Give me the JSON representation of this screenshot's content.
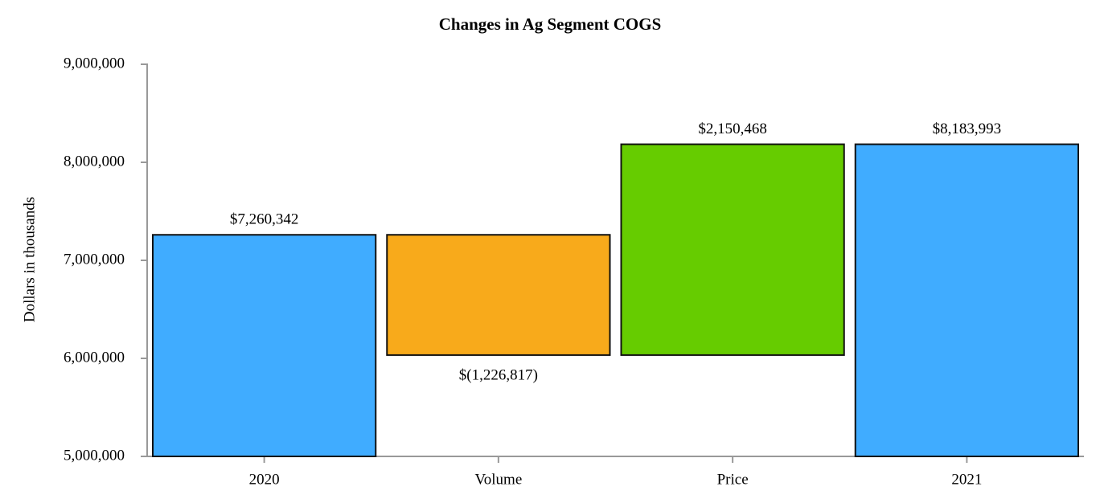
{
  "chart_data": {
    "type": "waterfall",
    "title": "Changes in Ag Segment COGS",
    "y_label": "Dollars in thousands",
    "categories": [
      "2020",
      "Volume",
      "Price",
      "2021"
    ],
    "measure": [
      "absolute",
      "relative",
      "relative",
      "absolute"
    ],
    "values": [
      7260342,
      -1226817,
      2150468,
      8183993
    ],
    "value_labels": [
      "$7,260,342",
      "$(1,226,817)",
      "$2,150,468",
      "$8,183,993"
    ],
    "colors": [
      "#40acff",
      "#f8aa1b",
      "#66cc00",
      "#40acff"
    ],
    "ylim": [
      5000000,
      9000000
    ],
    "yticks": [
      {
        "value": 5000000,
        "label": "5,000,000"
      },
      {
        "value": 6000000,
        "label": "6,000,000"
      },
      {
        "value": 7000000,
        "label": "7,000,000"
      },
      {
        "value": 8000000,
        "label": "8,000,000"
      },
      {
        "value": 9000000,
        "label": "9,000,000"
      }
    ],
    "grid": false
  }
}
